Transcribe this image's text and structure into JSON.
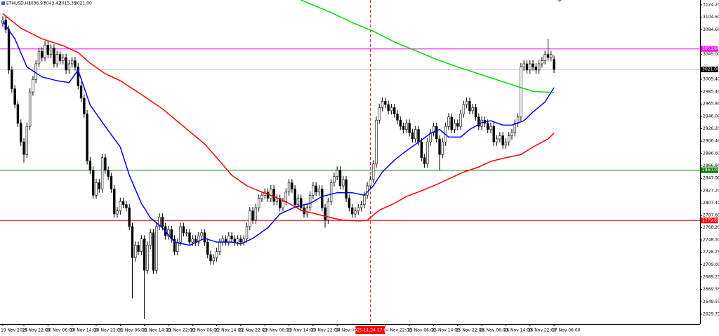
{
  "chart_data": {
    "type": "candlestick",
    "symbol": "ETHUSD,H1",
    "ohlc_header": [
      "3036.97",
      "3043.42",
      "3015.35",
      "3021.00"
    ],
    "ylim": [
      2614,
      3132
    ],
    "yticks": [
      {
        "value": 3124.2,
        "label": "3124.20"
      },
      {
        "value": 3104.6,
        "label": "3104.60"
      },
      {
        "value": 3084.6,
        "label": "3084.60"
      },
      {
        "value": 3045,
        "label": "3045.00"
      },
      {
        "value": 3005.4,
        "label": "3005.40"
      },
      {
        "value": 2985.4,
        "label": "2985.40"
      },
      {
        "value": 2965.8,
        "label": "2965.80"
      },
      {
        "value": 2946,
        "label": "2946.00"
      },
      {
        "value": 2926.2,
        "label": "2926.20"
      },
      {
        "value": 2906.4,
        "label": "2906.40"
      },
      {
        "value": 2886.6,
        "label": "2886.60"
      },
      {
        "value": 2866.8,
        "label": "2866.80"
      },
      {
        "value": 2847,
        "label": "2847.00"
      },
      {
        "value": 2827.2,
        "label": "2827.20"
      },
      {
        "value": 2807.4,
        "label": "2807.40"
      },
      {
        "value": 2787.6,
        "label": "2787.60"
      },
      {
        "value": 2768.2,
        "label": "2768.20"
      },
      {
        "value": 2748.5,
        "label": "2748.50"
      },
      {
        "value": 2728.75,
        "label": "2728.75"
      },
      {
        "value": 2709,
        "label": "2709.00"
      },
      {
        "value": 2689.25,
        "label": "2689.25"
      },
      {
        "value": 2669.55,
        "label": "2669.55"
      },
      {
        "value": 2649.55,
        "label": "2649.55"
      },
      {
        "value": 2629.75,
        "label": "2629.75"
      }
    ],
    "xticks": [
      {
        "value": 0,
        "label": "19 Nov 2025"
      },
      {
        "value": 7,
        "label": "19 Nov 22:00"
      },
      {
        "value": 15,
        "label": "20 Nov 06:00"
      },
      {
        "value": 23,
        "label": "20 Nov 14:00"
      },
      {
        "value": 31,
        "label": "20 Nov 22:00"
      },
      {
        "value": 39,
        "label": "21 Nov 06:00"
      },
      {
        "value": 47,
        "label": "21 Nov 14:00"
      },
      {
        "value": 55,
        "label": "21 Nov 22:00"
      },
      {
        "value": 63,
        "label": "22 Nov 06:00"
      },
      {
        "value": 71,
        "label": "22 Nov 14:00"
      },
      {
        "value": 79,
        "label": "22 Nov 22:00"
      },
      {
        "value": 87,
        "label": "23 Nov 06:00"
      },
      {
        "value": 95,
        "label": "23 Nov 14:00"
      },
      {
        "value": 103,
        "label": "23 Nov 22:00"
      },
      {
        "value": 111,
        "label": "24 Nov 06:00"
      },
      {
        "value": 127,
        "label": "24 Nov 22:00"
      },
      {
        "value": 135,
        "label": "25 Nov 06:00"
      },
      {
        "value": 143,
        "label": "25 Nov 14:00"
      },
      {
        "value": 151,
        "label": "25 Nov 22:00"
      },
      {
        "value": 159,
        "label": "26 Nov 06:00"
      },
      {
        "value": 167,
        "label": "26 Nov 14:00"
      },
      {
        "value": 175,
        "label": "26 Nov 22:00"
      },
      {
        "value": 183,
        "label": "27 Nov 06:00"
      }
    ],
    "cursor": {
      "x": 122,
      "label": "2025.11.24 17:00",
      "color": "#ff0000"
    },
    "hlines": [
      {
        "value": 3053.8,
        "label": "3053.80",
        "color": "#ff00ff",
        "box_color": "#ff00ff"
      },
      {
        "value": 3021,
        "label": "3021.00",
        "color": "#c0c0c0",
        "box_color": "#000000"
      },
      {
        "value": 2860,
        "label": "2860.00",
        "color": "#008000",
        "box_color": "#008000"
      },
      {
        "value": 2779.6,
        "label": "2779.60",
        "color": "#ff0000",
        "box_color": "#ff0000"
      }
    ],
    "open": [
      3095,
      3100,
      3085,
      3020,
      2990,
      2965,
      2935,
      2905,
      2885,
      2930,
      2985,
      3005,
      3030,
      3050,
      3040,
      3060,
      3045,
      3055,
      3030,
      3045,
      3035,
      3040,
      3020,
      3030,
      3035,
      3025,
      2995,
      2975,
      2950,
      2875,
      2860,
      2820,
      2840,
      2830,
      2880,
      2860,
      2850,
      2830,
      2790,
      2795,
      2810,
      2805,
      2800,
      2770,
      2720,
      2740,
      2730,
      2750,
      2700,
      2740,
      2760,
      2700,
      2770,
      2785,
      2770,
      2755,
      2765,
      2750,
      2730,
      2745,
      2770,
      2760,
      2760,
      2745,
      2750,
      2745,
      2755,
      2760,
      2745,
      2725,
      2715,
      2720,
      2730,
      2745,
      2750,
      2745,
      2755,
      2750,
      2745,
      2750,
      2745,
      2750,
      2770,
      2795,
      2780,
      2800,
      2815,
      2820,
      2825,
      2815,
      2830,
      2810,
      2815,
      2800,
      2810,
      2825,
      2840,
      2830,
      2805,
      2815,
      2800,
      2790,
      2800,
      2820,
      2835,
      2825,
      2830,
      2800,
      2780,
      2810,
      2840,
      2850,
      2860,
      2835,
      2845,
      2815,
      2800,
      2790,
      2795,
      2800,
      2805,
      2820,
      2835,
      2845,
      2870,
      2940,
      2960,
      2970,
      2965,
      2955,
      2960,
      2950,
      2940,
      2930,
      2925,
      2935,
      2920,
      2910,
      2925,
      2905,
      2880,
      2870,
      2905,
      2920,
      2930,
      2910,
      2885,
      2905,
      2930,
      2945,
      2925,
      2935,
      2930,
      2950,
      2965,
      2970,
      2955,
      2960,
      2945,
      2930,
      2940,
      2935,
      2925,
      2930,
      2905,
      2910,
      2915,
      2900,
      2905,
      2915,
      2920,
      2935,
      2945,
      3025,
      3030,
      3020,
      3030,
      3025,
      3020,
      3030,
      3035,
      3045,
      3040,
      3036.97
    ],
    "high": [
      3106,
      3106,
      3091,
      3026,
      2996,
      2971,
      2941,
      2911,
      2936,
      2991,
      3011,
      3036,
      3056,
      3056,
      3066,
      3066,
      3061,
      3061,
      3051,
      3051,
      3046,
      3046,
      3036,
      3041,
      3041,
      3031,
      3001,
      2981,
      2956,
      2881,
      2866,
      2846,
      2846,
      2886,
      2886,
      2866,
      2856,
      2836,
      2801,
      2816,
      2816,
      2811,
      2806,
      2776,
      2746,
      2746,
      2756,
      2756,
      2746,
      2766,
      2766,
      2776,
      2791,
      2791,
      2776,
      2771,
      2771,
      2756,
      2751,
      2776,
      2776,
      2766,
      2766,
      2756,
      2756,
      2761,
      2766,
      2766,
      2751,
      2731,
      2726,
      2736,
      2751,
      2756,
      2756,
      2761,
      2761,
      2756,
      2756,
      2756,
      2756,
      2776,
      2801,
      2801,
      2806,
      2821,
      2826,
      2831,
      2831,
      2836,
      2836,
      2821,
      2821,
      2816,
      2831,
      2846,
      2846,
      2836,
      2821,
      2821,
      2806,
      2806,
      2826,
      2841,
      2841,
      2836,
      2836,
      2806,
      2816,
      2846,
      2856,
      2866,
      2866,
      2851,
      2851,
      2821,
      2806,
      2801,
      2806,
      2811,
      2826,
      2841,
      2851,
      2876,
      2946,
      2966,
      2976,
      2976,
      2971,
      2966,
      2966,
      2956,
      2946,
      2936,
      2941,
      2941,
      2926,
      2931,
      2931,
      2911,
      2886,
      2911,
      2926,
      2936,
      2936,
      2916,
      2911,
      2936,
      2951,
      2951,
      2941,
      2941,
      2956,
      2971,
      2976,
      2976,
      2966,
      2966,
      2951,
      2946,
      2946,
      2941,
      2936,
      2936,
      2916,
      2921,
      2921,
      2911,
      2921,
      2926,
      2941,
      2951,
      3031,
      3036,
      3036,
      3036,
      3036,
      3031,
      3036,
      3041,
      3051,
      3070,
      3051,
      3043.42
    ],
    "low": [
      3089,
      3079,
      3014,
      2984,
      2959,
      2929,
      2899,
      2872,
      2879,
      2924,
      2979,
      2999,
      3024,
      3034,
      3034,
      3039,
      3039,
      3024,
      3024,
      3029,
      3029,
      3014,
      3014,
      3024,
      3019,
      2989,
      2969,
      2944,
      2869,
      2854,
      2814,
      2814,
      2824,
      2824,
      2854,
      2844,
      2824,
      2784,
      2784,
      2789,
      2799,
      2794,
      2764,
      2655,
      2714,
      2724,
      2724,
      2622,
      2694,
      2734,
      2694,
      2694,
      2764,
      2764,
      2749,
      2749,
      2744,
      2724,
      2724,
      2739,
      2754,
      2754,
      2739,
      2739,
      2739,
      2739,
      2749,
      2739,
      2719,
      2709,
      2709,
      2714,
      2724,
      2739,
      2739,
      2739,
      2744,
      2739,
      2739,
      2739,
      2739,
      2744,
      2764,
      2774,
      2774,
      2794,
      2809,
      2814,
      2809,
      2809,
      2804,
      2804,
      2794,
      2794,
      2804,
      2819,
      2824,
      2799,
      2799,
      2794,
      2784,
      2784,
      2794,
      2814,
      2819,
      2819,
      2794,
      2768,
      2774,
      2804,
      2834,
      2844,
      2829,
      2829,
      2809,
      2794,
      2784,
      2784,
      2789,
      2794,
      2799,
      2814,
      2829,
      2839,
      2864,
      2934,
      2954,
      2959,
      2949,
      2949,
      2944,
      2934,
      2924,
      2919,
      2919,
      2914,
      2904,
      2904,
      2899,
      2874,
      2864,
      2864,
      2899,
      2914,
      2904,
      2860,
      2879,
      2899,
      2924,
      2919,
      2919,
      2924,
      2924,
      2944,
      2959,
      2949,
      2949,
      2939,
      2924,
      2924,
      2929,
      2919,
      2919,
      2899,
      2899,
      2904,
      2894,
      2894,
      2899,
      2909,
      2914,
      2929,
      2939,
      3019,
      3014,
      3014,
      3019,
      3014,
      3014,
      3024,
      3029,
      3034,
      3034,
      3015.35
    ],
    "close": [
      3100,
      3085,
      3020,
      2990,
      2965,
      2935,
      2905,
      2885,
      2930,
      2985,
      3005,
      3030,
      3050,
      3040,
      3060,
      3045,
      3055,
      3030,
      3045,
      3035,
      3040,
      3020,
      3030,
      3035,
      3025,
      2995,
      2975,
      2950,
      2875,
      2860,
      2820,
      2840,
      2830,
      2880,
      2860,
      2850,
      2830,
      2790,
      2795,
      2810,
      2805,
      2800,
      2770,
      2720,
      2740,
      2730,
      2750,
      2700,
      2740,
      2760,
      2700,
      2770,
      2785,
      2770,
      2755,
      2765,
      2750,
      2730,
      2745,
      2770,
      2760,
      2760,
      2745,
      2750,
      2745,
      2755,
      2760,
      2745,
      2725,
      2715,
      2720,
      2730,
      2745,
      2750,
      2745,
      2755,
      2750,
      2745,
      2750,
      2745,
      2750,
      2770,
      2795,
      2780,
      2800,
      2815,
      2820,
      2825,
      2815,
      2830,
      2810,
      2815,
      2800,
      2810,
      2825,
      2840,
      2830,
      2805,
      2815,
      2800,
      2790,
      2800,
      2820,
      2835,
      2825,
      2830,
      2800,
      2780,
      2810,
      2840,
      2850,
      2860,
      2835,
      2845,
      2815,
      2800,
      2790,
      2795,
      2800,
      2805,
      2820,
      2835,
      2845,
      2870,
      2940,
      2960,
      2970,
      2965,
      2955,
      2960,
      2950,
      2940,
      2930,
      2925,
      2935,
      2920,
      2910,
      2925,
      2905,
      2880,
      2870,
      2905,
      2920,
      2930,
      2910,
      2885,
      2905,
      2930,
      2945,
      2925,
      2935,
      2930,
      2950,
      2965,
      2970,
      2955,
      2960,
      2945,
      2930,
      2940,
      2935,
      2925,
      2930,
      2905,
      2910,
      2915,
      2900,
      2905,
      2915,
      2920,
      2935,
      2945,
      3025,
      3030,
      3020,
      3030,
      3025,
      3020,
      3030,
      3035,
      3045,
      3040,
      3045,
      3021
    ],
    "ma": [
      {
        "color": "#0000ff",
        "x": [
          0,
          4,
          8,
          13,
          18,
          22,
          25,
          29,
          34,
          39,
          42,
          46,
          49,
          53,
          57,
          62,
          67,
          71,
          76,
          79,
          83,
          88,
          92,
          97,
          102,
          106,
          111,
          116,
          120,
          123,
          126,
          130,
          134,
          139,
          142,
          145,
          148,
          152,
          155,
          159,
          162,
          166,
          169,
          173,
          176,
          180,
          183
        ],
        "values": [
          3098,
          3070,
          3025,
          3009,
          3003,
          3000,
          3020,
          2964,
          2930,
          2897,
          2852,
          2807,
          2784,
          2768,
          2745,
          2740,
          2751,
          2745,
          2745,
          2742,
          2751,
          2768,
          2790,
          2801,
          2807,
          2818,
          2824,
          2824,
          2820,
          2835,
          2857,
          2876,
          2891,
          2908,
          2919,
          2925,
          2913,
          2913,
          2925,
          2936,
          2939,
          2932,
          2932,
          2939,
          2953,
          2969,
          2992
        ]
      },
      {
        "color": "#ff0000",
        "x": [
          0,
          6,
          13,
          20,
          25,
          29,
          34,
          39,
          46,
          53,
          60,
          67,
          71,
          76,
          81,
          85,
          90,
          95,
          99,
          104,
          109,
          113,
          118,
          121,
          125,
          130,
          134,
          139,
          144,
          148,
          153,
          158,
          162,
          167,
          172,
          176,
          181,
          183
        ],
        "values": [
          3110,
          3087,
          3070,
          3059,
          3048,
          3031,
          3014,
          3003,
          2981,
          2958,
          2930,
          2902,
          2880,
          2852,
          2835,
          2827,
          2818,
          2807,
          2796,
          2790,
          2784,
          2780,
          2779,
          2780,
          2796,
          2807,
          2818,
          2827,
          2837,
          2846,
          2857,
          2865,
          2874,
          2880,
          2885,
          2897,
          2910,
          2919
        ]
      },
      {
        "color": "#00dd00",
        "x": [
          99,
          109,
          116,
          123,
          130,
          137,
          144,
          151,
          158,
          165,
          172,
          176,
          183
        ],
        "values": [
          3132,
          3112,
          3096,
          3082,
          3065,
          3051,
          3037,
          3025,
          3014,
          3003,
          2992,
          2986,
          2984
        ]
      }
    ],
    "bull_color": "#ffffff",
    "bear_color": "#000000"
  }
}
